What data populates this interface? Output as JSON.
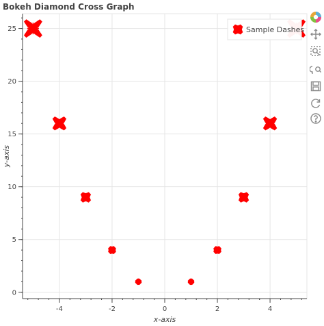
{
  "chart_data": {
    "type": "scatter",
    "title": "Bokeh Diamond Cross Graph",
    "xlabel": "x-axis",
    "ylabel": "y-axis",
    "xlim": [
      -5.4,
      5.4
    ],
    "ylim": [
      -0.6,
      26.4
    ],
    "x_ticks": [
      -4,
      -2,
      0,
      2,
      4
    ],
    "x_tick_labels": [
      "-4",
      "-2",
      "0",
      "2",
      "4"
    ],
    "y_ticks": [
      0,
      5,
      10,
      15,
      20,
      25
    ],
    "y_tick_labels": [
      "0",
      "5",
      "10",
      "15",
      "20",
      "25"
    ],
    "grid": true,
    "legend_position": "top-right",
    "series": [
      {
        "name": "Sample Dashes",
        "marker": "dash",
        "color": "#ff0000",
        "x": [
          -5,
          -4,
          -3,
          -2,
          -1,
          1,
          2,
          3,
          4,
          5
        ],
        "y": [
          25,
          16,
          9,
          4,
          1,
          1,
          4,
          9,
          16,
          25
        ],
        "size": [
          25,
          16,
          9,
          4,
          1,
          1,
          4,
          9,
          16,
          25
        ]
      }
    ]
  },
  "toolbar": {
    "tools": [
      {
        "name": "bokeh-logo-icon",
        "interactable": false
      },
      {
        "name": "pan-tool-icon",
        "interactable": true
      },
      {
        "name": "box-zoom-tool-icon",
        "interactable": true
      },
      {
        "name": "wheel-zoom-tool-icon",
        "interactable": true
      },
      {
        "name": "save-tool-icon",
        "interactable": true
      },
      {
        "name": "reset-tool-icon",
        "interactable": true
      },
      {
        "name": "help-tool-icon",
        "interactable": true
      }
    ]
  }
}
